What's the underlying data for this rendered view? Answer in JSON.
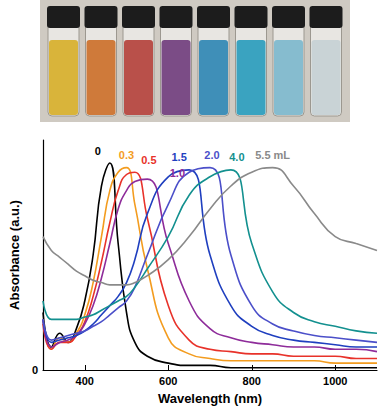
{
  "chart_data": {
    "type": "line",
    "x_label": "Wavelength (nm)",
    "y_label": "Absorbance (a.u.)",
    "x": [
      300,
      320,
      340,
      360,
      380,
      400,
      420,
      440,
      460,
      480,
      500,
      520,
      550,
      600,
      650,
      700,
      750,
      800,
      850,
      900,
      950,
      1000,
      1050,
      1100
    ],
    "series": [
      {
        "name": "0",
        "color": "#000000",
        "values": [
          0.25,
          0.1,
          0.16,
          0.12,
          0.18,
          0.3,
          0.5,
          0.8,
          0.9,
          0.55,
          0.25,
          0.12,
          0.06,
          0.03,
          0.02,
          0.02,
          0.01,
          0.01,
          0.01,
          0.01,
          0.01,
          0.01,
          0.01,
          0.01
        ]
      },
      {
        "name": "0.3",
        "color": "#f39c1f",
        "values": [
          0.22,
          0.09,
          0.14,
          0.12,
          0.16,
          0.24,
          0.38,
          0.58,
          0.78,
          0.86,
          0.88,
          0.72,
          0.44,
          0.14,
          0.07,
          0.05,
          0.04,
          0.04,
          0.04,
          0.04,
          0.04,
          0.03,
          0.03,
          0.03
        ]
      },
      {
        "name": "0.5",
        "color": "#e8322a",
        "values": [
          0.2,
          0.09,
          0.12,
          0.12,
          0.15,
          0.21,
          0.32,
          0.47,
          0.64,
          0.78,
          0.85,
          0.86,
          0.66,
          0.28,
          0.13,
          0.09,
          0.08,
          0.07,
          0.07,
          0.06,
          0.06,
          0.06,
          0.05,
          0.05
        ]
      },
      {
        "name": "1.0",
        "color": "#8e2c9a",
        "values": [
          0.22,
          0.1,
          0.12,
          0.13,
          0.15,
          0.2,
          0.28,
          0.4,
          0.55,
          0.7,
          0.78,
          0.82,
          0.83,
          0.55,
          0.3,
          0.18,
          0.14,
          0.12,
          0.11,
          0.1,
          0.1,
          0.09,
          0.09,
          0.08
        ]
      },
      {
        "name": "1.5",
        "color": "#1f3fbf",
        "values": [
          0.22,
          0.12,
          0.13,
          0.14,
          0.15,
          0.17,
          0.2,
          0.24,
          0.28,
          0.32,
          0.38,
          0.48,
          0.68,
          0.84,
          0.87,
          0.5,
          0.28,
          0.19,
          0.15,
          0.13,
          0.12,
          0.11,
          0.1,
          0.1
        ]
      },
      {
        "name": "2.0",
        "color": "#4b4fc9",
        "values": [
          0.22,
          0.13,
          0.14,
          0.15,
          0.16,
          0.17,
          0.19,
          0.21,
          0.24,
          0.27,
          0.3,
          0.36,
          0.5,
          0.72,
          0.86,
          0.88,
          0.5,
          0.28,
          0.2,
          0.17,
          0.15,
          0.14,
          0.13,
          0.12
        ]
      },
      {
        "name": "4.0",
        "color": "#13908f",
        "values": [
          0.3,
          0.22,
          0.22,
          0.22,
          0.22,
          0.23,
          0.24,
          0.26,
          0.28,
          0.3,
          0.32,
          0.36,
          0.44,
          0.58,
          0.76,
          0.84,
          0.87,
          0.55,
          0.34,
          0.25,
          0.21,
          0.19,
          0.17,
          0.16
        ]
      },
      {
        "name": "5.5 mL",
        "color": "#8a8a8a",
        "values": [
          0.58,
          0.52,
          0.49,
          0.46,
          0.43,
          0.41,
          0.39,
          0.38,
          0.37,
          0.37,
          0.37,
          0.38,
          0.41,
          0.48,
          0.58,
          0.7,
          0.8,
          0.86,
          0.88,
          0.8,
          0.68,
          0.58,
          0.55,
          0.52
        ]
      }
    ],
    "xlim": [
      300,
      1100
    ],
    "xticks": [
      400,
      600,
      800,
      1000
    ],
    "ylim": [
      0,
      1
    ],
    "yticks": [
      0
    ],
    "grid": false
  }
}
